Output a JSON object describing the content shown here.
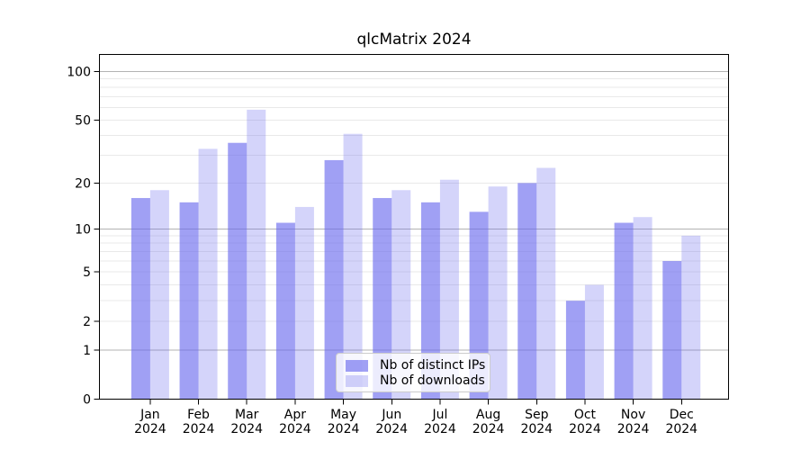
{
  "chart_data": {
    "type": "bar",
    "title": "qlcMatrix 2024",
    "categories": [
      "Jan",
      "Feb",
      "Mar",
      "Apr",
      "May",
      "Jun",
      "Jul",
      "Aug",
      "Sep",
      "Oct",
      "Nov",
      "Dec"
    ],
    "category_year": "2024",
    "series": [
      {
        "name": "Nb of distinct IPs",
        "color": "rgba(102,102,238,0.62)",
        "values": [
          16,
          15,
          36,
          11,
          28,
          16,
          15,
          13,
          20,
          3,
          11,
          6
        ]
      },
      {
        "name": "Nb of downloads",
        "color": "rgba(102,102,238,0.28)",
        "values": [
          18,
          33,
          58,
          14,
          41,
          18,
          21,
          19,
          25,
          4,
          12,
          9
        ]
      }
    ],
    "y_scale": "log1p",
    "ylim": [
      0,
      128
    ],
    "y_axis_ticks": [
      0,
      1,
      2,
      5,
      10,
      20,
      50,
      100
    ],
    "major_gridlines": [
      1,
      10,
      100
    ],
    "minor_gridlines": [
      2,
      3,
      4,
      5,
      6,
      7,
      8,
      9,
      20,
      30,
      40,
      50,
      60,
      70,
      80,
      90
    ],
    "grid": true,
    "legend_position": "bottom-center",
    "colors": {
      "major_grid": "#b3b3b3",
      "minor_grid": "#e9e9e9",
      "axis": "#000000",
      "text": "#000000",
      "background": "#ffffff"
    }
  }
}
